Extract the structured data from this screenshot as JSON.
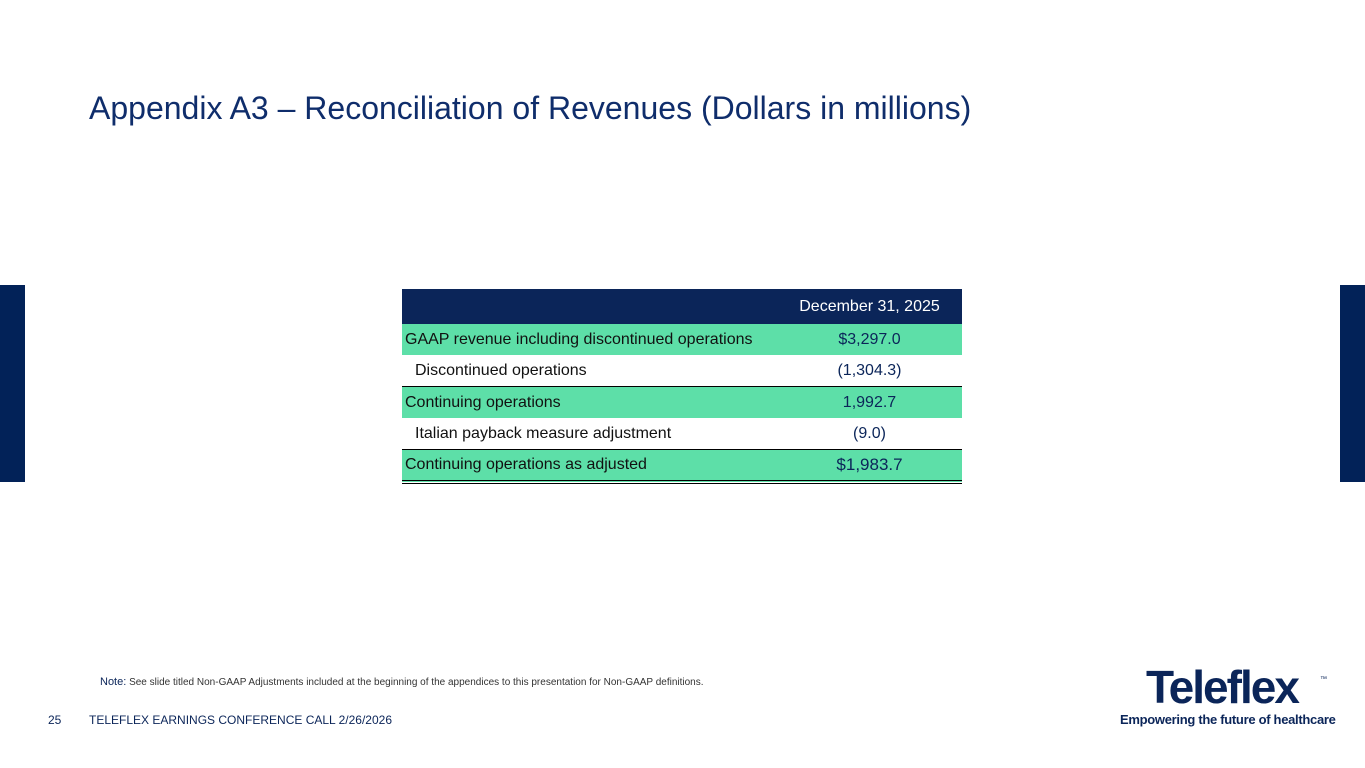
{
  "slide": {
    "title": "Appendix A3 – Reconciliation of Revenues (Dollars in millions)",
    "page_number": "25",
    "footer_text": "TELEFLEX EARNINGS CONFERENCE CALL 2/26/2026"
  },
  "table": {
    "header": {
      "label": "",
      "value": "December 31, 2025"
    },
    "rows": [
      {
        "label": "GAAP revenue including discontinued operations",
        "value": "$3,297.0"
      },
      {
        "label": "Discontinued operations",
        "value": "(1,304.3)"
      },
      {
        "label": "Continuing operations",
        "value": "1,992.7"
      },
      {
        "label": "Italian payback measure adjustment",
        "value": "(9.0)"
      },
      {
        "label": "Continuing operations as adjusted",
        "value": "$1,983.7"
      }
    ]
  },
  "note": {
    "label": "Note:",
    "text": "See slide titled Non-GAAP Adjustments included at the beginning of the appendices to this presentation for Non-GAAP definitions."
  },
  "logo": {
    "wordmark": "Teleflex",
    "trademark": "™",
    "tagline": "Empowering the future of healthcare"
  },
  "colors": {
    "navy": "#0b2559",
    "accent_green": "#5ddfa8",
    "side_bar": "#022258"
  }
}
